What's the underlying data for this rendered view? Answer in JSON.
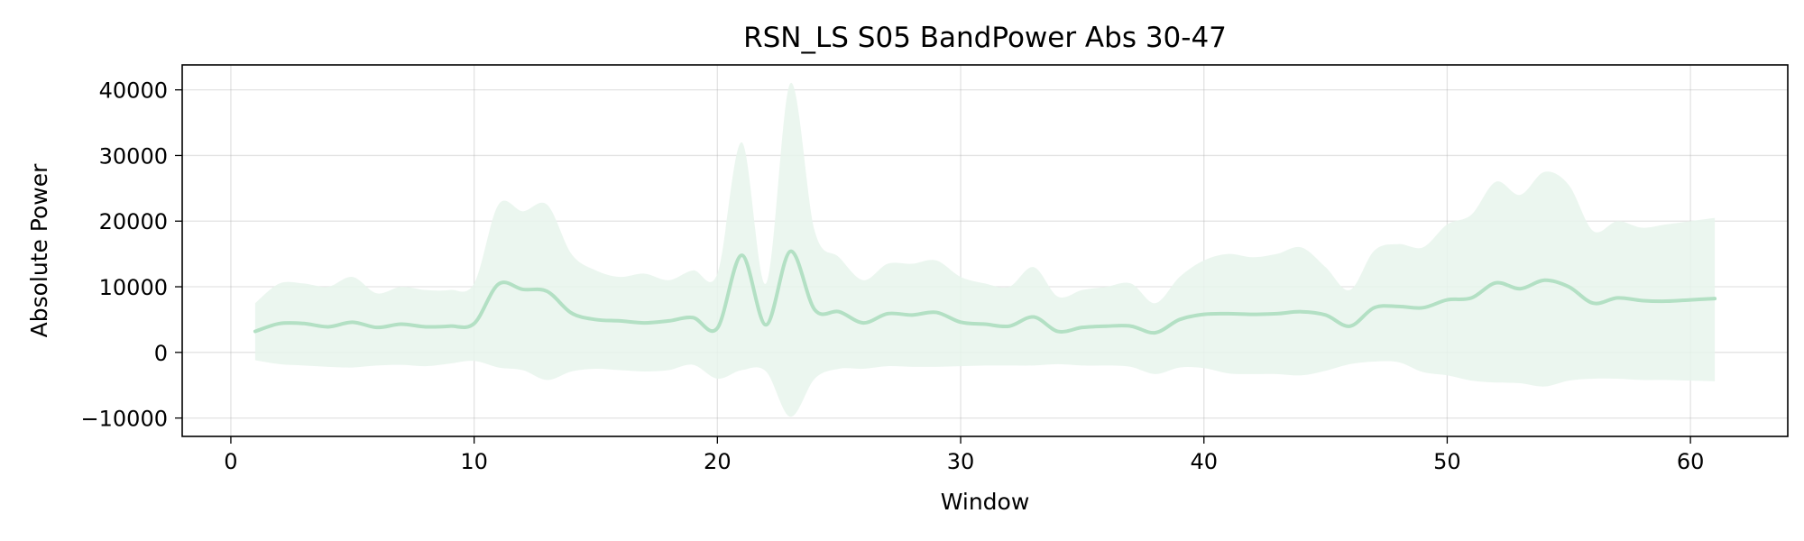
{
  "chart_data": {
    "type": "line",
    "title": "RSN_LS S05 BandPower Abs 30-47",
    "xlabel": "Window",
    "ylabel": "Absolute Power",
    "xlim": [
      -2,
      64
    ],
    "ylim": [
      -12800,
      43800
    ],
    "xticks": [
      0,
      10,
      20,
      30,
      40,
      50,
      60
    ],
    "xtick_labels": [
      "0",
      "10",
      "20",
      "30",
      "40",
      "50",
      "60"
    ],
    "yticks": [
      -10000,
      0,
      10000,
      20000,
      30000,
      40000
    ],
    "ytick_labels": [
      "−10000",
      "0",
      "10000",
      "20000",
      "30000",
      "40000"
    ],
    "grid": true,
    "colors": {
      "line": "#b3e0c4",
      "band": "#e8f4ec"
    },
    "x": [
      1,
      2,
      3,
      4,
      5,
      6,
      7,
      8,
      9,
      10,
      11,
      12,
      13,
      14,
      15,
      16,
      17,
      18,
      19,
      20,
      21,
      22,
      23,
      24,
      25,
      26,
      27,
      28,
      29,
      30,
      31,
      32,
      33,
      34,
      35,
      36,
      37,
      38,
      39,
      40,
      41,
      42,
      43,
      44,
      45,
      46,
      47,
      48,
      49,
      50,
      51,
      52,
      53,
      54,
      55,
      56,
      57,
      58,
      59,
      60,
      61
    ],
    "series": [
      {
        "values": [
          3200,
          4400,
          4400,
          3900,
          4600,
          3800,
          4300,
          3900,
          4000,
          4400,
          10400,
          9600,
          9300,
          6000,
          5000,
          4800,
          4500,
          4800,
          5300,
          3700,
          14800,
          4200,
          15400,
          6500,
          6200,
          4500,
          5900,
          5700,
          6100,
          4600,
          4300,
          4000,
          5400,
          3200,
          3800,
          4000,
          4000,
          3000,
          5000,
          5800,
          5900,
          5800,
          5900,
          6200,
          5700,
          4000,
          6800,
          7000,
          6800,
          8000,
          8300,
          10600,
          9700,
          11000,
          10000,
          7500,
          8300,
          7900,
          7800,
          8000,
          8200
        ],
        "upper": [
          7500,
          10500,
          10500,
          10000,
          11500,
          9000,
          10000,
          9500,
          9500,
          10500,
          22500,
          21500,
          22500,
          15000,
          12500,
          11500,
          12000,
          11000,
          12500,
          12000,
          32000,
          10500,
          41000,
          18500,
          14500,
          11000,
          13500,
          13500,
          14000,
          11500,
          10500,
          10000,
          13000,
          8500,
          9500,
          10000,
          10500,
          7500,
          11500,
          14000,
          15000,
          14500,
          15000,
          16000,
          13000,
          9500,
          15500,
          16500,
          16000,
          19500,
          21000,
          26000,
          24000,
          27500,
          25500,
          18500,
          20000,
          19000,
          19500,
          20000,
          20500
        ],
        "lower": [
          -1200,
          -1800,
          -2000,
          -2200,
          -2300,
          -2000,
          -1900,
          -2100,
          -1700,
          -1300,
          -2300,
          -2700,
          -4200,
          -2900,
          -2500,
          -2700,
          -2900,
          -2700,
          -1900,
          -4000,
          -2700,
          -2900,
          -9800,
          -4000,
          -2500,
          -2500,
          -2100,
          -2200,
          -2200,
          -2100,
          -2000,
          -2000,
          -2000,
          -1800,
          -2000,
          -2000,
          -2200,
          -3300,
          -2300,
          -2400,
          -3200,
          -3300,
          -3300,
          -3500,
          -2800,
          -1800,
          -1400,
          -1500,
          -3000,
          -3500,
          -4300,
          -4600,
          -4700,
          -5200,
          -4300,
          -4000,
          -4000,
          -4200,
          -4200,
          -4300,
          -4400
        ]
      }
    ]
  }
}
